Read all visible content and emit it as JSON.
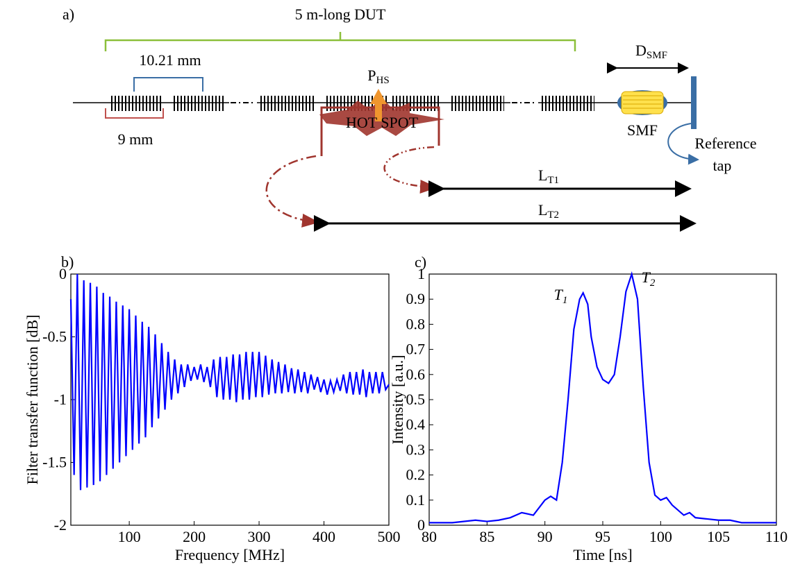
{
  "diagram": {
    "label": "a)",
    "dut": "5 m-long DUT",
    "spacing": "10.21 mm",
    "length": "9 mm",
    "power": {
      "text": "P",
      "sub": "HS"
    },
    "hotspot": "HOT SPOT",
    "distance": {
      "text": "D",
      "sub": "SMF"
    },
    "smf": "SMF",
    "reference": [
      "Reference",
      "tap"
    ],
    "lt1": {
      "text": "L",
      "sub": "T1"
    },
    "lt2": {
      "text": "L",
      "sub": "T2"
    }
  },
  "chart_data": [
    {
      "type": "line",
      "label": "b)",
      "xlabel": "Frequency [MHz]",
      "ylabel": "Filter transfer function [dB]",
      "x": [
        10,
        15,
        20,
        25,
        30,
        35,
        40,
        45,
        50,
        55,
        60,
        65,
        70,
        75,
        80,
        85,
        90,
        95,
        100,
        105,
        110,
        115,
        120,
        125,
        130,
        135,
        140,
        145,
        150,
        155,
        160,
        165,
        170,
        175,
        180,
        185,
        190,
        195,
        200,
        205,
        210,
        215,
        220,
        225,
        230,
        235,
        240,
        245,
        250,
        255,
        260,
        265,
        270,
        275,
        280,
        285,
        290,
        295,
        300,
        305,
        310,
        315,
        320,
        325,
        330,
        335,
        340,
        345,
        350,
        355,
        360,
        365,
        370,
        375,
        380,
        385,
        390,
        395,
        400,
        405,
        410,
        415,
        420,
        425,
        430,
        435,
        440,
        445,
        450,
        455,
        460,
        465,
        470,
        475,
        480,
        485,
        490,
        495,
        500
      ],
      "series": [
        {
          "name": "b",
          "color": "#0000ff",
          "values": [
            -0.2,
            -1.6,
            0,
            -1.72,
            -0.05,
            -1.7,
            -0.07,
            -1.68,
            -0.1,
            -1.65,
            -0.15,
            -1.6,
            -0.18,
            -1.55,
            -0.22,
            -1.5,
            -0.25,
            -1.45,
            -0.28,
            -1.4,
            -0.33,
            -1.35,
            -0.38,
            -1.3,
            -0.42,
            -1.22,
            -0.48,
            -1.15,
            -0.55,
            -1.08,
            -0.62,
            -1.0,
            -0.68,
            -0.95,
            -0.72,
            -0.9,
            -0.72,
            -0.85,
            -0.74,
            -0.84,
            -0.72,
            -0.86,
            -0.74,
            -0.9,
            -0.68,
            -0.98,
            -0.66,
            -1.0,
            -0.66,
            -1.0,
            -0.64,
            -1.02,
            -0.64,
            -1.0,
            -0.62,
            -1.0,
            -0.62,
            -0.98,
            -0.62,
            -0.98,
            -0.65,
            -0.96,
            -0.68,
            -0.95,
            -0.7,
            -0.95,
            -0.72,
            -0.94,
            -0.75,
            -0.95,
            -0.76,
            -0.94,
            -0.78,
            -0.95,
            -0.8,
            -0.92,
            -0.82,
            -0.94,
            -0.84,
            -0.96,
            -0.85,
            -0.94,
            -0.84,
            -0.93,
            -0.8,
            -0.95,
            -0.78,
            -0.96,
            -0.78,
            -0.96,
            -0.76,
            -0.98,
            -0.78,
            -0.95,
            -0.78,
            -0.95,
            -0.78,
            -0.92,
            -0.88
          ]
        }
      ],
      "xlim": [
        10,
        500
      ],
      "xticks": [
        100,
        200,
        300,
        400,
        500
      ],
      "ylim": [
        -2,
        0
      ],
      "yticks": [
        0,
        -0.5,
        -1,
        -1.5,
        -2
      ]
    },
    {
      "type": "line",
      "label": "c)",
      "xlabel": "Time [ns]",
      "ylabel": "Intensity [a.u.]",
      "x": [
        80,
        82,
        84,
        85,
        86,
        87,
        88,
        89,
        90,
        90.5,
        91,
        91.5,
        92,
        92.5,
        93,
        93.3,
        93.7,
        94,
        94.5,
        95,
        95.5,
        96,
        96.5,
        97,
        97.5,
        98,
        98.5,
        99,
        99.5,
        100,
        100.5,
        101,
        102,
        102.5,
        103,
        104,
        105,
        106,
        107,
        110
      ],
      "series": [
        {
          "name": "c",
          "color": "#0000ff",
          "values": [
            0.01,
            0.01,
            0.02,
            0.015,
            0.02,
            0.03,
            0.05,
            0.04,
            0.1,
            0.115,
            0.1,
            0.25,
            0.5,
            0.78,
            0.9,
            0.925,
            0.88,
            0.75,
            0.63,
            0.58,
            0.565,
            0.6,
            0.75,
            0.93,
            1.0,
            0.9,
            0.55,
            0.25,
            0.12,
            0.1,
            0.11,
            0.08,
            0.04,
            0.05,
            0.03,
            0.025,
            0.02,
            0.02,
            0.01,
            0.01
          ]
        }
      ],
      "annotations": [
        {
          "text": "T",
          "sub": "1"
        },
        {
          "text": "T",
          "sub": "2"
        }
      ],
      "xlim": [
        80,
        110
      ],
      "xticks": [
        80,
        85,
        90,
        95,
        100,
        105,
        110
      ],
      "ylim": [
        0,
        1
      ],
      "yticks": [
        0,
        0.1,
        0.2,
        0.3,
        0.4,
        0.5,
        0.6,
        0.7,
        0.8,
        0.9,
        1
      ]
    }
  ]
}
